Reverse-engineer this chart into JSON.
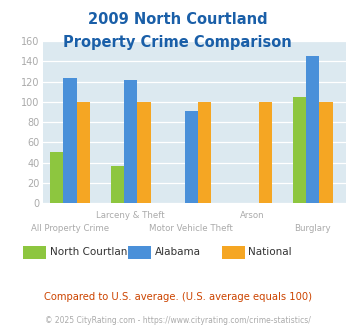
{
  "title_line1": "2009 North Courtland",
  "title_line2": "Property Crime Comparison",
  "categories": [
    "All Property Crime",
    "Larceny & Theft",
    "Motor Vehicle Theft",
    "Arson",
    "Burglary"
  ],
  "series": {
    "North Courtland": [
      50,
      37,
      null,
      null,
      105
    ],
    "Alabama": [
      124,
      122,
      91,
      null,
      145
    ],
    "National": [
      100,
      100,
      100,
      100,
      100
    ]
  },
  "colors": {
    "North Courtland": "#8dc63f",
    "Alabama": "#4a90d9",
    "National": "#f5a623"
  },
  "ylim": [
    0,
    160
  ],
  "yticks": [
    0,
    20,
    40,
    60,
    80,
    100,
    120,
    140,
    160
  ],
  "background_color": "#dce9f0",
  "fig_bg_color": "#ffffff",
  "title_color": "#1a5fa8",
  "footnote": "Compared to U.S. average. (U.S. average equals 100)",
  "copyright": "© 2025 CityRating.com - https://www.cityrating.com/crime-statistics/",
  "footnote_color": "#cc4400",
  "copyright_color": "#aaaaaa",
  "tick_color": "#aaaaaa",
  "label_color": "#aaaaaa",
  "bar_width": 0.22,
  "group_positions": [
    0.6,
    1.6,
    2.6,
    3.6,
    4.6
  ],
  "xlim": [
    0.15,
    5.15
  ]
}
